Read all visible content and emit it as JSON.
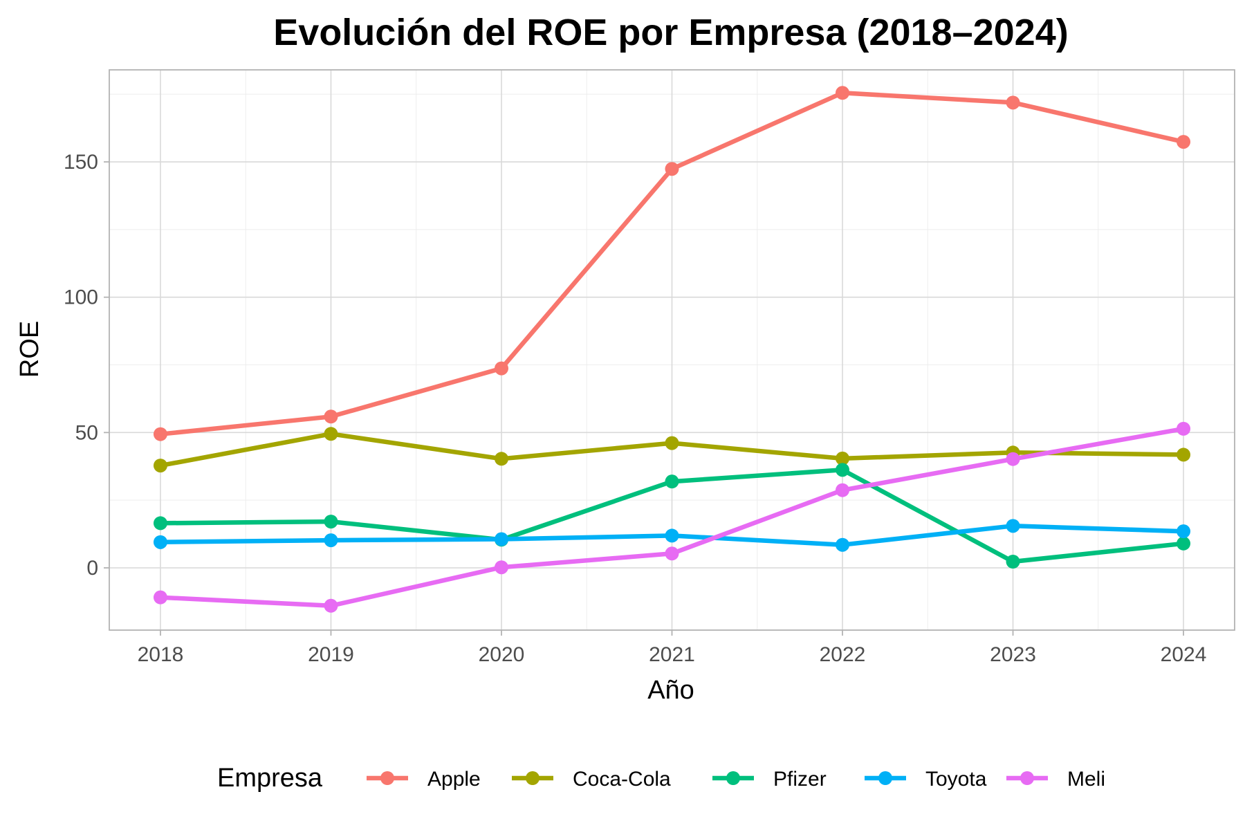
{
  "chart_data": {
    "type": "line",
    "title": "Evolución del ROE por Empresa (2018–2024)",
    "xlabel": "Año",
    "ylabel": "ROE",
    "x": [
      2018,
      2019,
      2020,
      2021,
      2022,
      2023,
      2024
    ],
    "x_tick_labels": [
      "2018",
      "2019",
      "2020",
      "2021",
      "2022",
      "2023",
      "2024"
    ],
    "y_ticks": [
      0,
      50,
      100,
      150
    ],
    "y_tick_labels": [
      "0",
      "50",
      "100",
      "150"
    ],
    "ylim": [
      -23,
      184
    ],
    "xlim": [
      2017.7,
      2024.3
    ],
    "grid": true,
    "legend": {
      "title": "Empresa",
      "position": "bottom"
    },
    "series": [
      {
        "name": "Apple",
        "color": "#F8766D",
        "values": [
          49.4,
          55.9,
          73.7,
          147.4,
          175.5,
          171.9,
          157.4
        ]
      },
      {
        "name": "Coca-Cola",
        "color": "#A3A500",
        "values": [
          37.8,
          49.5,
          40.3,
          46.1,
          40.4,
          42.6,
          41.8
        ]
      },
      {
        "name": "Pfizer",
        "color": "#00BF7D",
        "values": [
          16.5,
          17.1,
          10.4,
          31.9,
          36.2,
          2.3,
          9.0
        ]
      },
      {
        "name": "Toyota",
        "color": "#00B0F6",
        "values": [
          9.5,
          10.2,
          10.6,
          11.9,
          8.5,
          15.5,
          13.5
        ]
      },
      {
        "name": "Meli",
        "color": "#E76BF3",
        "values": [
          -10.9,
          -14.0,
          0.2,
          5.3,
          28.7,
          40.2,
          51.4
        ]
      }
    ]
  }
}
